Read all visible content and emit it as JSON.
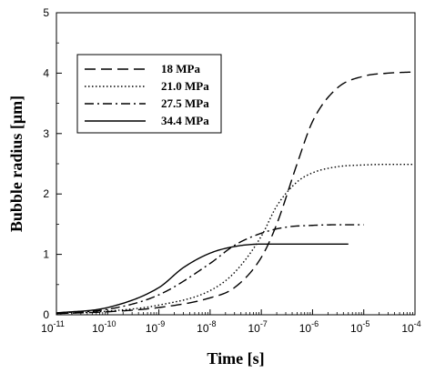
{
  "chart_data": {
    "type": "line",
    "xlabel": "Time [s]",
    "ylabel": "Bubble radius [μm]",
    "xscale": "log",
    "xlim": [
      1e-11,
      0.0001
    ],
    "ylim": [
      0,
      5
    ],
    "x_ticks": [
      {
        "base": "10",
        "exp": "-11"
      },
      {
        "base": "10",
        "exp": "-10"
      },
      {
        "base": "10",
        "exp": "-9"
      },
      {
        "base": "10",
        "exp": "-8"
      },
      {
        "base": "10",
        "exp": "-7"
      },
      {
        "base": "10",
        "exp": "-6"
      },
      {
        "base": "10",
        "exp": "-5"
      },
      {
        "base": "10",
        "exp": "-4"
      }
    ],
    "y_ticks": [
      "0",
      "1",
      "2",
      "3",
      "4",
      "5"
    ],
    "grid": false,
    "legend_position": "top-left",
    "series": [
      {
        "name": "18 MPa",
        "line_style": "dashed",
        "x": [
          1e-11,
          1e-10,
          1e-09,
          1e-08,
          3e-08,
          1e-07,
          2e-07,
          5e-07,
          1e-06,
          3e-06,
          1e-05,
          3e-05,
          0.0001
        ],
        "y": [
          0.02,
          0.05,
          0.12,
          0.28,
          0.45,
          0.95,
          1.5,
          2.5,
          3.2,
          3.75,
          3.95,
          4.0,
          4.02
        ]
      },
      {
        "name": "21.0 MPa",
        "line_style": "dotted",
        "x": [
          1e-11,
          1e-10,
          1e-09,
          1e-08,
          3e-08,
          1e-07,
          2e-07,
          5e-07,
          1e-06,
          3e-06,
          1e-05,
          3e-05,
          0.0001
        ],
        "y": [
          0.02,
          0.06,
          0.16,
          0.4,
          0.7,
          1.3,
          1.8,
          2.2,
          2.35,
          2.45,
          2.48,
          2.49,
          2.49
        ]
      },
      {
        "name": "27.5 MPa",
        "line_style": "dash-dot",
        "x": [
          1e-11,
          1e-10,
          1e-09,
          1e-08,
          3e-08,
          1e-07,
          3e-07,
          1e-06,
          3e-06,
          1e-05
        ],
        "y": [
          0.03,
          0.09,
          0.33,
          0.85,
          1.15,
          1.35,
          1.45,
          1.48,
          1.49,
          1.49
        ]
      },
      {
        "name": "34.4 MPa",
        "line_style": "solid",
        "x": [
          1e-11,
          1e-10,
          1e-09,
          3e-09,
          1e-08,
          3e-08,
          1e-07,
          3e-07,
          1e-06,
          5e-06
        ],
        "y": [
          0.03,
          0.12,
          0.45,
          0.78,
          1.02,
          1.13,
          1.17,
          1.17,
          1.17,
          1.17
        ]
      }
    ]
  }
}
